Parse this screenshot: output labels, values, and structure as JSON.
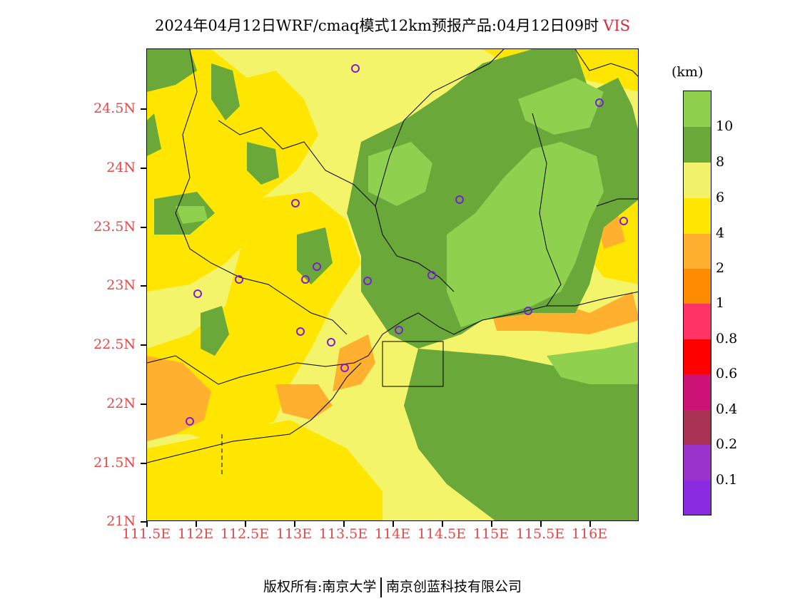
{
  "title": {
    "text": "2024年04月12日WRF/cmaq模式12km预报产品:04月12日09时",
    "variable": "VIS"
  },
  "legend": {
    "unit": "(km)",
    "labels": [
      "10",
      "8",
      "6",
      "4",
      "2",
      "1",
      "0.8",
      "0.6",
      "0.4",
      "0.2",
      "0.1"
    ],
    "colors": [
      "#8fd14f",
      "#6aa83a",
      "#f2f26a",
      "#ffe600",
      "#ffb02e",
      "#ff8c00",
      "#ff3366",
      "#ff0000",
      "#cc1177",
      "#aa3355",
      "#9933cc",
      "#8a2be2"
    ]
  },
  "axes": {
    "y_labels": [
      "24.5N",
      "24N",
      "23.5N",
      "23N",
      "22.5N",
      "22N",
      "21.5N",
      "21N"
    ],
    "x_labels": [
      "111.5E",
      "112E",
      "112.5E",
      "113E",
      "113.5E",
      "114E",
      "114.5E",
      "115E",
      "115.5E",
      "116E"
    ],
    "label_color": "#e34a4a"
  },
  "footer": {
    "left": "版权所有:南京大学",
    "right": "南京创蓝科技有限公司"
  }
}
